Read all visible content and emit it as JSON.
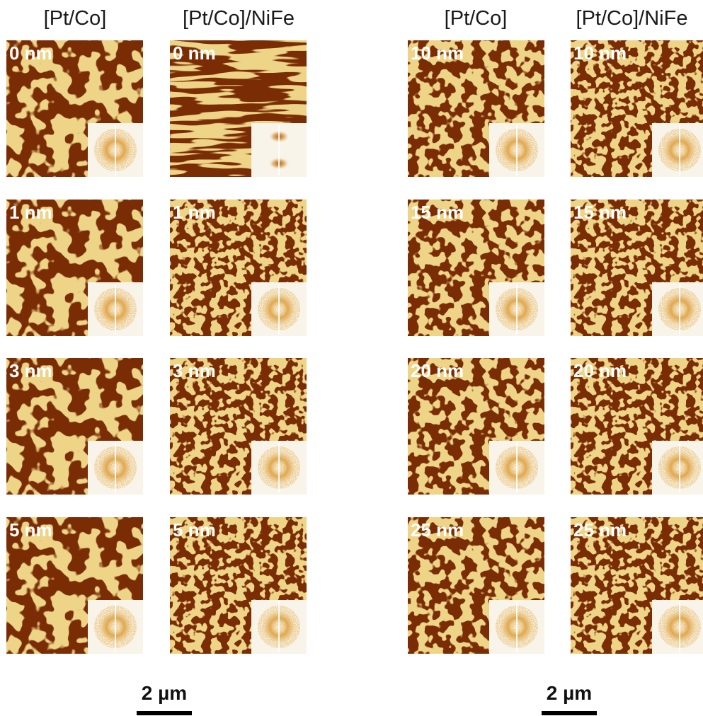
{
  "figure": {
    "column_headers": [
      "[Pt/Co]",
      "[Pt/Co]/NiFe",
      "[Pt/Co]",
      "[Pt/Co]/NiFe"
    ],
    "panels": [
      {
        "label": "0 nm",
        "variant": "dense-domains",
        "fft": "ring"
      },
      {
        "label": "0 nm",
        "variant": "stripes",
        "fft": "two-lobes"
      },
      {
        "label": "1 nm",
        "variant": "dense-domains",
        "fft": "ring"
      },
      {
        "label": "1 nm",
        "variant": "fine-maze",
        "fft": "split-ring"
      },
      {
        "label": "3 nm",
        "variant": "dense-domains",
        "fft": "ring"
      },
      {
        "label": "3 nm",
        "variant": "fine-maze",
        "fft": "split-ring"
      },
      {
        "label": "5 nm",
        "variant": "dense-domains",
        "fft": "ring"
      },
      {
        "label": "5 nm",
        "variant": "fine-maze",
        "fft": "split-ring"
      },
      {
        "label": "10 nm",
        "variant": "maze",
        "fft": "split-ring"
      },
      {
        "label": "10 nm",
        "variant": "fine-maze",
        "fft": "split-ring"
      },
      {
        "label": "15 nm",
        "variant": "maze",
        "fft": "split-ring"
      },
      {
        "label": "15 nm",
        "variant": "fine-maze",
        "fft": "split-ring"
      },
      {
        "label": "20 nm",
        "variant": "maze",
        "fft": "split-ring"
      },
      {
        "label": "20 nm",
        "variant": "fine-maze",
        "fft": "split-ring"
      },
      {
        "label": "25 nm",
        "variant": "maze",
        "fft": "split-ring"
      },
      {
        "label": "25 nm",
        "variant": "fine-maze",
        "fft": "split-ring"
      }
    ],
    "scale_bars": [
      {
        "label": "2 µm"
      },
      {
        "label": "2 µm"
      }
    ],
    "colors": {
      "dark_domain": "#7a2c05",
      "light_domain": "#d8a93a",
      "fft_background": "#f8f4e9",
      "fft_speckle": "#c77d1c",
      "label_text": "#ffffff"
    }
  }
}
